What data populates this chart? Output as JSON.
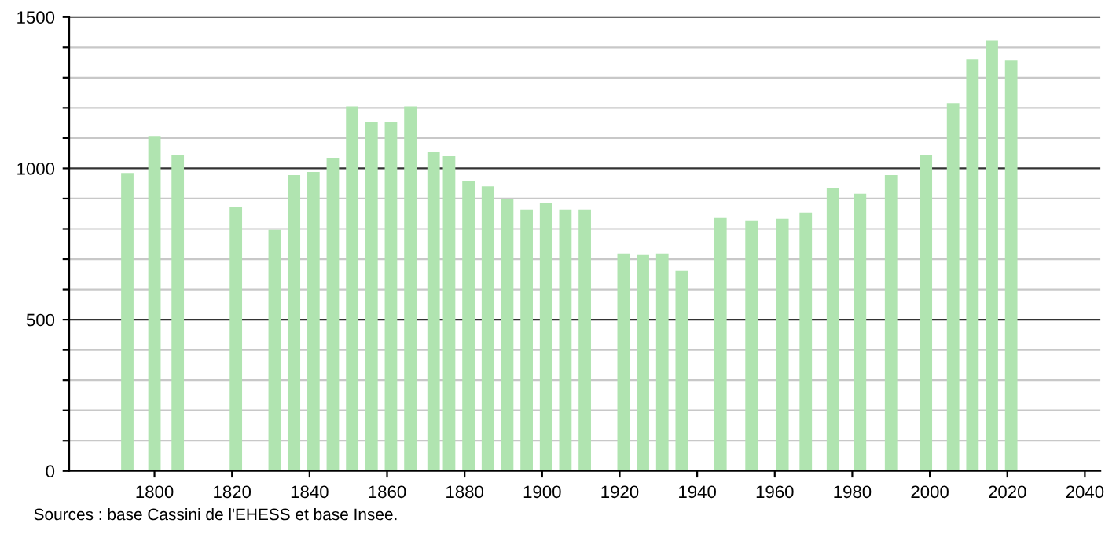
{
  "chart_data": {
    "type": "bar",
    "x": [
      1793,
      1800,
      1806,
      1821,
      1831,
      1836,
      1841,
      1846,
      1851,
      1856,
      1861,
      1866,
      1872,
      1876,
      1881,
      1886,
      1891,
      1896,
      1901,
      1906,
      1911,
      1921,
      1926,
      1931,
      1936,
      1946,
      1954,
      1962,
      1968,
      1975,
      1982,
      1990,
      1999,
      2006,
      2011,
      2016,
      2021
    ],
    "values": [
      985,
      1107,
      1045,
      874,
      797,
      978,
      988,
      1035,
      1205,
      1154,
      1154,
      1205,
      1055,
      1040,
      957,
      941,
      900,
      864,
      885,
      864,
      864,
      719,
      714,
      719,
      662,
      838,
      828,
      833,
      854,
      936,
      916,
      978,
      1045,
      1216,
      1361,
      1423,
      1356
    ],
    "color": "#b0e4b0",
    "xlim": [
      1778,
      2044
    ],
    "xticks": [
      1800,
      1820,
      1840,
      1860,
      1880,
      1900,
      1920,
      1940,
      1960,
      1980,
      2000,
      2020,
      2040
    ],
    "ylim": [
      0,
      1500
    ],
    "yticks": [
      0,
      {
        "value": 100,
        "label": null
      },
      {
        "value": 200,
        "label": null
      },
      {
        "value": 300,
        "label": null
      },
      {
        "value": 400,
        "label": null
      },
      500,
      {
        "value": 600,
        "label": null
      },
      {
        "value": 700,
        "label": null
      },
      {
        "value": 800,
        "label": null
      },
      {
        "value": 900,
        "label": null
      },
      1000,
      {
        "value": 1100,
        "label": null
      },
      {
        "value": 1200,
        "label": null
      },
      {
        "value": 1300,
        "label": null
      },
      {
        "value": 1400,
        "label": null
      },
      1500
    ],
    "grid": "y",
    "annotations": [
      "Sources : base Cassini de l'EHESS et base Insee."
    ]
  }
}
